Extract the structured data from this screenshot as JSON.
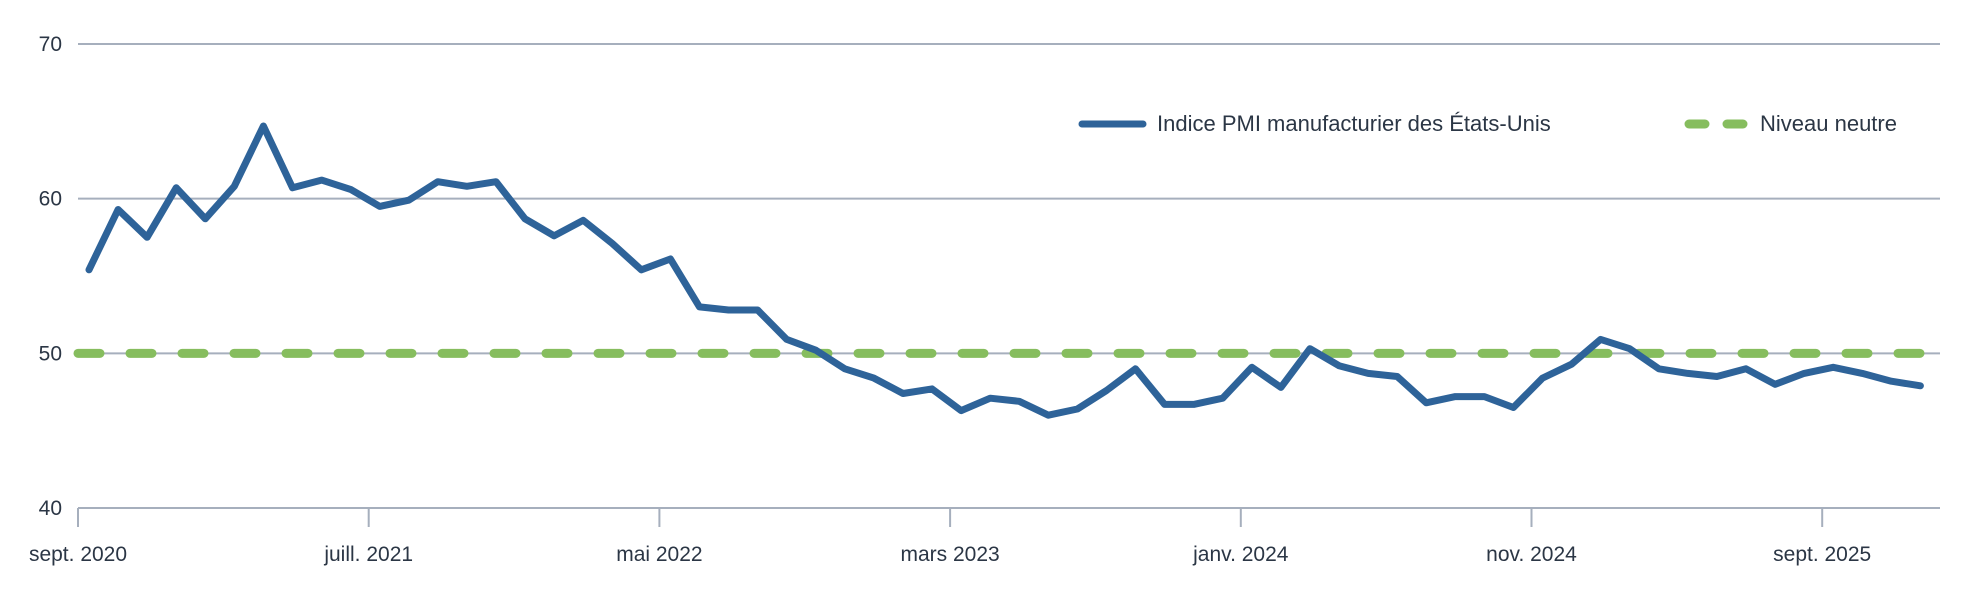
{
  "chart_data": {
    "type": "line",
    "title": "",
    "xlabel": "",
    "ylabel": "",
    "ylim": [
      40,
      70
    ],
    "yticks": [
      "40",
      "50",
      "60",
      "70"
    ],
    "grid": true,
    "legend_position": "top-right",
    "xtick_labels": [
      "sept. 2020",
      "juill. 2021",
      "mai 2022",
      "mars 2023",
      "janv. 2024",
      "nov. 2024",
      "sept. 2025"
    ],
    "x_start": "2020-09",
    "x_frequency": "monthly",
    "series": [
      {
        "name": "Indice PMI manufacturier des États-Unis",
        "color": "#2e6399",
        "style": "solid",
        "values": [
          55.4,
          59.3,
          57.5,
          60.7,
          58.7,
          60.8,
          64.7,
          60.7,
          61.2,
          60.6,
          59.5,
          59.9,
          61.1,
          60.8,
          61.1,
          58.7,
          57.6,
          58.6,
          57.1,
          55.4,
          56.1,
          53.0,
          52.8,
          52.8,
          50.9,
          50.2,
          49.0,
          48.4,
          47.4,
          47.7,
          46.3,
          47.1,
          46.9,
          46.0,
          46.4,
          47.6,
          49.0,
          46.7,
          46.7,
          47.1,
          49.1,
          47.8,
          50.3,
          49.2,
          48.7,
          48.5,
          46.8,
          47.2,
          47.2,
          46.5,
          48.4,
          49.3,
          50.9,
          50.3,
          49.0,
          48.7,
          48.5,
          49.0,
          48.0,
          48.7,
          49.1,
          48.7,
          48.2,
          47.9
        ]
      },
      {
        "name": "Niveau neutre",
        "color": "#86bd5e",
        "style": "dashed",
        "value": 50
      }
    ]
  }
}
